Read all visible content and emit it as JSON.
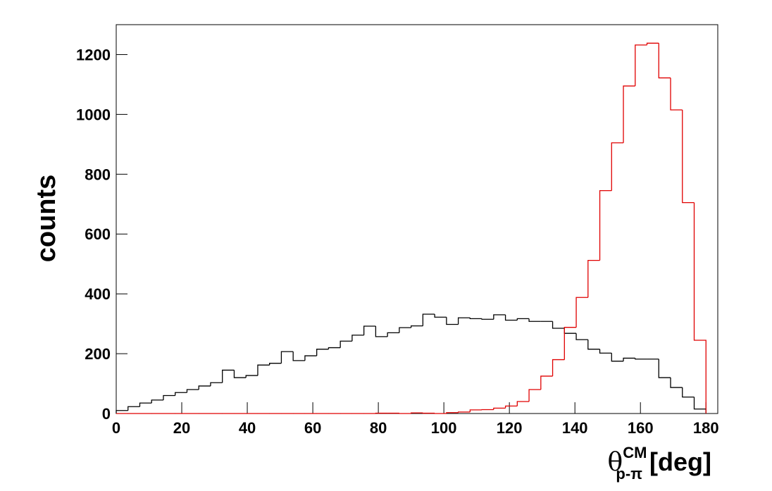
{
  "chart_data": {
    "type": "histogram",
    "x_label": {
      "symbol": "θ",
      "superscript": "CM",
      "subscript": "p-π",
      "unit": "[deg]"
    },
    "y_label": "counts",
    "bins": [
      0,
      3.6,
      7.2,
      10.8,
      14.4,
      18,
      21.6,
      25.2,
      28.8,
      32.4,
      36,
      39.6,
      43.2,
      46.8,
      50.4,
      54,
      57.6,
      61.2,
      64.8,
      68.4,
      72,
      75.6,
      79.2,
      82.8,
      86.4,
      90,
      93.6,
      97.2,
      100.8,
      104.4,
      108,
      111.6,
      115.2,
      118.8,
      122.4,
      126,
      129.6,
      133.2,
      136.8,
      140.4,
      144,
      147.6,
      151.2,
      154.8,
      158.4,
      162,
      165.6,
      169.2,
      172.8,
      176.4,
      180
    ],
    "series": [
      {
        "color": "#000000",
        "values": [
          10,
          23,
          35,
          45,
          60,
          70,
          80,
          92,
          103,
          145,
          120,
          127,
          162,
          168,
          207,
          177,
          193,
          215,
          220,
          242,
          262,
          292,
          257,
          270,
          287,
          293,
          332,
          322,
          298,
          320,
          317,
          315,
          330,
          312,
          317,
          308,
          308,
          285,
          268,
          247,
          215,
          202,
          175,
          185,
          182,
          182,
          120,
          87,
          55,
          15
        ]
      },
      {
        "color": "#e00000",
        "values": [
          0,
          0,
          0,
          0,
          0,
          0,
          0,
          0,
          0,
          0,
          0,
          0,
          0,
          0,
          0,
          0,
          0,
          0,
          0,
          0,
          0,
          0,
          1,
          1,
          0,
          2,
          1,
          0,
          3,
          5,
          12,
          13,
          18,
          25,
          40,
          80,
          125,
          180,
          288,
          388,
          512,
          745,
          905,
          1095,
          1232,
          1238,
          1122,
          1015,
          705,
          245
        ]
      }
    ],
    "xlim": [
      0,
      183.6
    ],
    "ylim": [
      0,
      1300
    ],
    "xticks": [
      0,
      20,
      40,
      60,
      80,
      100,
      120,
      140,
      160,
      180
    ],
    "yticks": [
      0,
      200,
      400,
      600,
      800,
      1000,
      1200
    ]
  }
}
